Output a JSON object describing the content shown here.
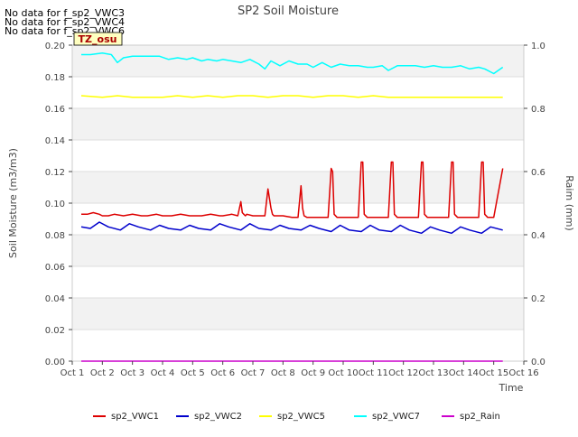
{
  "chart_data": {
    "type": "line",
    "title": "SP2 Soil Moisture",
    "no_data_notes": [
      "No data for f_sp2_VWC3",
      "No data for f_sp2_VWC4",
      "No data for f_sp2_VWC6"
    ],
    "badge": "TZ_osu",
    "xlabel": "Time",
    "ylabel": "Soil Moisture (m3/m3)",
    "y2label": "Raim (mm)",
    "xlim": [
      1,
      16
    ],
    "ylim": [
      0,
      0.2
    ],
    "y2lim": [
      0,
      1.0
    ],
    "x_ticks": [
      1,
      2,
      3,
      4,
      5,
      6,
      7,
      8,
      9,
      10,
      11,
      12,
      13,
      14,
      15,
      16
    ],
    "x_tick_labels": [
      "Oct 1",
      "Oct 2",
      "Oct 3",
      "Oct 4",
      "Oct 5",
      "Oct 6",
      "Oct 7",
      "Oct 8",
      "Oct 9",
      "Oct 10",
      "Oct 11",
      "Oct 12",
      "Oct 13",
      "Oct 14",
      "Oct 15",
      "Oct 16"
    ],
    "y_ticks": [
      0,
      0.02,
      0.04,
      0.06,
      0.08,
      0.1,
      0.12,
      0.14,
      0.16,
      0.18,
      0.2
    ],
    "y_tick_labels": [
      "0.00",
      "0.02",
      "0.04",
      "0.06",
      "0.08",
      "0.10",
      "0.12",
      "0.14",
      "0.16",
      "0.18",
      "0.20"
    ],
    "y2_ticks": [
      0,
      0.2,
      0.4,
      0.6,
      0.8,
      1.0
    ],
    "y2_tick_labels": [
      "0.0",
      "0.2",
      "0.4",
      "0.6",
      "0.8",
      "1.0"
    ],
    "grid": true,
    "legend_position": "bottom",
    "series": [
      {
        "name": "sp2_VWC1",
        "color": "#dd0000",
        "axis": "left",
        "x": [
          1.3,
          1.5,
          1.7,
          1.9,
          2.0,
          2.2,
          2.4,
          2.7,
          3.0,
          3.3,
          3.5,
          3.8,
          4.0,
          4.3,
          4.6,
          4.9,
          5.0,
          5.3,
          5.6,
          5.9,
          6.0,
          6.3,
          6.5,
          6.6,
          6.65,
          6.7,
          6.75,
          6.8,
          7.0,
          7.2,
          7.4,
          7.5,
          7.6,
          7.65,
          7.7,
          7.8,
          8.0,
          8.3,
          8.5,
          8.6,
          8.65,
          8.7,
          8.8,
          9.0,
          9.3,
          9.5,
          9.6,
          9.65,
          9.7,
          9.8,
          10.0,
          10.3,
          10.5,
          10.6,
          10.65,
          10.7,
          10.8,
          11.0,
          11.3,
          11.5,
          11.6,
          11.65,
          11.7,
          11.8,
          12.0,
          12.3,
          12.5,
          12.6,
          12.65,
          12.7,
          12.8,
          13.0,
          13.3,
          13.5,
          13.6,
          13.65,
          13.7,
          13.8,
          14.0,
          14.3,
          14.5,
          14.6,
          14.65,
          14.7,
          14.8,
          15.0,
          15.3
        ],
        "values": [
          0.093,
          0.093,
          0.094,
          0.093,
          0.092,
          0.092,
          0.093,
          0.092,
          0.093,
          0.092,
          0.092,
          0.093,
          0.092,
          0.092,
          0.093,
          0.092,
          0.092,
          0.092,
          0.093,
          0.092,
          0.092,
          0.093,
          0.092,
          0.101,
          0.094,
          0.093,
          0.092,
          0.093,
          0.092,
          0.092,
          0.092,
          0.109,
          0.097,
          0.093,
          0.092,
          0.092,
          0.092,
          0.091,
          0.091,
          0.111,
          0.097,
          0.092,
          0.091,
          0.091,
          0.091,
          0.091,
          0.122,
          0.12,
          0.093,
          0.091,
          0.091,
          0.091,
          0.091,
          0.126,
          0.126,
          0.093,
          0.091,
          0.091,
          0.091,
          0.091,
          0.126,
          0.126,
          0.093,
          0.091,
          0.091,
          0.091,
          0.091,
          0.126,
          0.126,
          0.093,
          0.091,
          0.091,
          0.091,
          0.091,
          0.126,
          0.126,
          0.093,
          0.091,
          0.091,
          0.091,
          0.091,
          0.126,
          0.126,
          0.093,
          0.091,
          0.091,
          0.122
        ]
      },
      {
        "name": "sp2_VWC2",
        "color": "#0000cc",
        "axis": "left",
        "x": [
          1.3,
          1.6,
          1.9,
          2.2,
          2.6,
          2.9,
          3.2,
          3.6,
          3.9,
          4.2,
          4.6,
          4.9,
          5.2,
          5.6,
          5.9,
          6.2,
          6.6,
          6.9,
          7.2,
          7.6,
          7.9,
          8.2,
          8.6,
          8.9,
          9.2,
          9.6,
          9.9,
          10.2,
          10.6,
          10.9,
          11.2,
          11.6,
          11.9,
          12.2,
          12.6,
          12.9,
          13.2,
          13.6,
          13.9,
          14.2,
          14.6,
          14.9,
          15.3
        ],
        "values": [
          0.085,
          0.084,
          0.088,
          0.085,
          0.083,
          0.087,
          0.085,
          0.083,
          0.086,
          0.084,
          0.083,
          0.086,
          0.084,
          0.083,
          0.087,
          0.085,
          0.083,
          0.087,
          0.084,
          0.083,
          0.086,
          0.084,
          0.083,
          0.086,
          0.084,
          0.082,
          0.086,
          0.083,
          0.082,
          0.086,
          0.083,
          0.082,
          0.086,
          0.083,
          0.081,
          0.085,
          0.083,
          0.081,
          0.085,
          0.083,
          0.081,
          0.085,
          0.083
        ]
      },
      {
        "name": "sp2_VWC5",
        "color": "#ffff00",
        "axis": "left",
        "x": [
          1.3,
          2.0,
          2.5,
          3.0,
          3.5,
          4.0,
          4.5,
          5.0,
          5.5,
          6.0,
          6.5,
          7.0,
          7.5,
          8.0,
          8.5,
          9.0,
          9.5,
          10.0,
          10.5,
          11.0,
          11.5,
          12.0,
          12.5,
          13.0,
          13.5,
          14.0,
          14.5,
          15.3
        ],
        "values": [
          0.168,
          0.167,
          0.168,
          0.167,
          0.167,
          0.167,
          0.168,
          0.167,
          0.168,
          0.167,
          0.168,
          0.168,
          0.167,
          0.168,
          0.168,
          0.167,
          0.168,
          0.168,
          0.167,
          0.168,
          0.167,
          0.167,
          0.167,
          0.167,
          0.167,
          0.167,
          0.167,
          0.167
        ]
      },
      {
        "name": "sp2_VWC7",
        "color": "#00ffff",
        "axis": "left",
        "x": [
          1.3,
          1.6,
          2.0,
          2.3,
          2.5,
          2.7,
          3.0,
          3.3,
          3.6,
          3.9,
          4.2,
          4.5,
          4.8,
          5.0,
          5.3,
          5.5,
          5.8,
          6.0,
          6.3,
          6.6,
          6.9,
          7.2,
          7.4,
          7.6,
          7.9,
          8.2,
          8.5,
          8.8,
          9.0,
          9.3,
          9.6,
          9.9,
          10.2,
          10.5,
          10.8,
          11.0,
          11.3,
          11.5,
          11.8,
          12.1,
          12.4,
          12.7,
          13.0,
          13.3,
          13.6,
          13.9,
          14.2,
          14.5,
          14.7,
          15.0,
          15.3
        ],
        "values": [
          0.194,
          0.194,
          0.195,
          0.194,
          0.189,
          0.192,
          0.193,
          0.193,
          0.193,
          0.193,
          0.191,
          0.192,
          0.191,
          0.192,
          0.19,
          0.191,
          0.19,
          0.191,
          0.19,
          0.189,
          0.191,
          0.188,
          0.185,
          0.19,
          0.187,
          0.19,
          0.188,
          0.188,
          0.186,
          0.189,
          0.186,
          0.188,
          0.187,
          0.187,
          0.186,
          0.186,
          0.187,
          0.184,
          0.187,
          0.187,
          0.187,
          0.186,
          0.187,
          0.186,
          0.186,
          0.187,
          0.185,
          0.186,
          0.185,
          0.182,
          0.186
        ]
      },
      {
        "name": "sp2_Rain",
        "color": "#cc00cc",
        "axis": "right",
        "x": [
          1.3,
          15.3
        ],
        "values": [
          0,
          0
        ]
      }
    ]
  }
}
